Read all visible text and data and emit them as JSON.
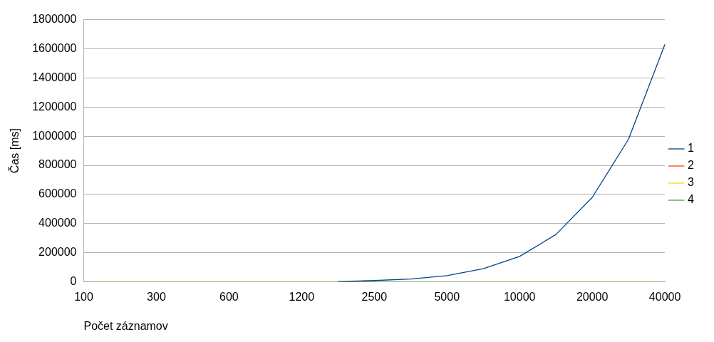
{
  "chart_data": {
    "type": "line",
    "xlabel": "Počet záznamov",
    "ylabel": "Čas [ms]",
    "categories": [
      "100",
      null,
      "300",
      null,
      "600",
      null,
      "1200",
      null,
      "2500",
      null,
      "5000",
      null,
      "10000",
      null,
      "20000",
      null,
      "40000"
    ],
    "series": [
      {
        "name": "1",
        "color": "#004586",
        "values": [
          null,
          null,
          null,
          null,
          null,
          null,
          null,
          2000,
          9000,
          19000,
          43000,
          90000,
          175000,
          325000,
          580000,
          980000,
          1630000
        ]
      },
      {
        "name": "2",
        "color": "#ff420e",
        "values": [
          null,
          null,
          null,
          null,
          null,
          null,
          null,
          null,
          null,
          null,
          null,
          null,
          null,
          null,
          null,
          null,
          null
        ]
      },
      {
        "name": "3",
        "color": "#ffd320",
        "values": [
          null,
          null,
          null,
          null,
          null,
          null,
          null,
          null,
          null,
          null,
          null,
          null,
          null,
          null,
          null,
          null,
          null
        ]
      },
      {
        "name": "4",
        "color": "#579d1c",
        "values": [
          0,
          0,
          0,
          0,
          0,
          0,
          0,
          0,
          0,
          0,
          0,
          0,
          0,
          0,
          0,
          0,
          0
        ]
      }
    ],
    "ylim": [
      0,
      1800000
    ],
    "yticks": [
      0,
      200000,
      400000,
      600000,
      800000,
      1000000,
      1200000,
      1400000,
      1600000,
      1800000
    ],
    "grid": "y",
    "legend": "right",
    "marker": "none",
    "line_style": "solid"
  }
}
